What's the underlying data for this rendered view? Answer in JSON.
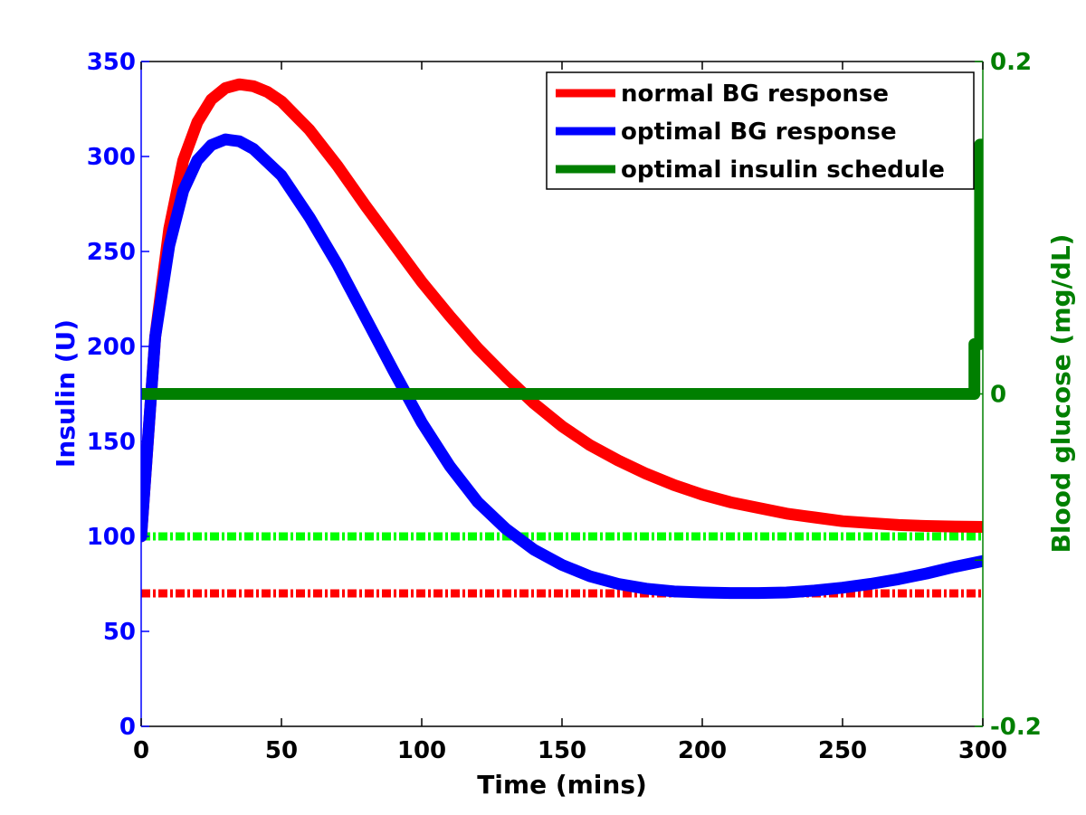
{
  "chart_data": {
    "type": "line",
    "xlabel": "Time (mins)",
    "ylabel_left": "Insulin (U)",
    "ylabel_right": "Blood glucose (mg/dL)",
    "xlim": [
      0,
      300
    ],
    "ylim_left": [
      0,
      350
    ],
    "ylim_right": [
      -0.2,
      0.2
    ],
    "x_ticks": [
      "0",
      "50",
      "100",
      "150",
      "200",
      "250",
      "300"
    ],
    "y_ticks_left": [
      "0",
      "50",
      "100",
      "150",
      "200",
      "250",
      "300",
      "350"
    ],
    "y_ticks_right": [
      "-0.2",
      "0",
      "0.2"
    ],
    "grid": false,
    "legend_position": "top-right",
    "colors": {
      "left_axis": "#0000ff",
      "right_axis": "#008000",
      "x_axis": "#000000"
    },
    "series": [
      {
        "name": "normal BG response",
        "axis": "left",
        "color": "#ff0000",
        "x": [
          0,
          5,
          10,
          15,
          20,
          25,
          30,
          35,
          40,
          45,
          50,
          60,
          70,
          80,
          90,
          100,
          110,
          120,
          130,
          140,
          150,
          160,
          170,
          180,
          190,
          200,
          210,
          220,
          230,
          240,
          250,
          260,
          270,
          280,
          290,
          300
        ],
        "y": [
          100,
          205,
          262,
          298,
          318,
          330,
          336,
          338,
          337,
          334,
          329,
          314,
          295,
          274,
          254,
          234,
          216,
          199,
          184,
          170,
          158,
          148,
          140,
          133,
          127,
          122,
          118,
          115,
          112,
          110,
          108,
          107,
          106,
          105.5,
          105.2,
          105
        ]
      },
      {
        "name": "optimal BG response",
        "axis": "left",
        "color": "#0000ff",
        "x": [
          0,
          5,
          10,
          15,
          20,
          25,
          30,
          35,
          40,
          45,
          50,
          60,
          70,
          80,
          90,
          100,
          110,
          120,
          130,
          140,
          150,
          160,
          170,
          180,
          190,
          200,
          210,
          220,
          230,
          240,
          250,
          260,
          270,
          280,
          290,
          300
        ],
        "y": [
          100,
          205,
          253,
          282,
          298,
          306,
          309,
          308,
          304,
          297,
          290,
          268,
          243,
          215,
          187,
          160,
          137,
          118,
          104,
          93,
          85,
          79,
          75,
          72.5,
          71,
          70.5,
          70.2,
          70.2,
          70.5,
          71.5,
          73,
          75,
          77.5,
          80.5,
          84,
          87
        ]
      },
      {
        "name": "optimal insulin schedule",
        "axis": "right",
        "color": "#007f00",
        "x": [
          0,
          297,
          297,
          299,
          299,
          300
        ],
        "y": [
          0,
          0,
          0.03,
          0.03,
          0.15,
          0.15
        ]
      }
    ],
    "reference_lines": [
      {
        "axis": "left",
        "value": 100,
        "color": "#00ff00",
        "style": "dash-dot"
      },
      {
        "axis": "left",
        "value": 70,
        "color": "#ff0000",
        "style": "dash-dot"
      }
    ]
  }
}
